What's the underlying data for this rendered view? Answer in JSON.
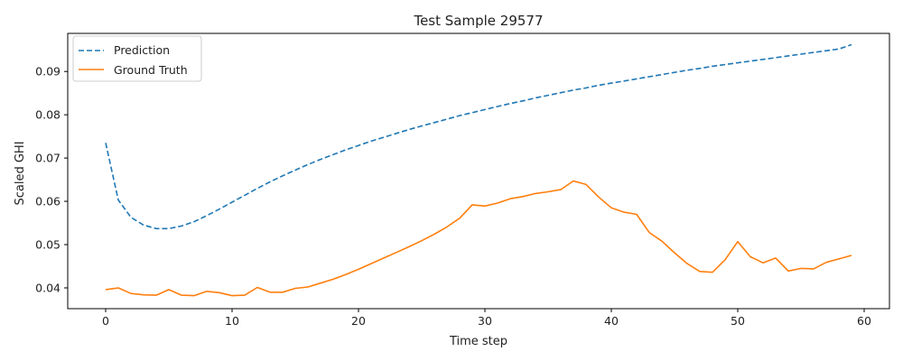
{
  "chart_data": {
    "type": "line",
    "title": "Test Sample 29577",
    "xlabel": "Time step",
    "ylabel": "Scaled GHI",
    "xlim": [
      -3,
      62
    ],
    "ylim": [
      0.0352,
      0.0988
    ],
    "xticks": [
      0,
      10,
      20,
      30,
      40,
      50,
      60
    ],
    "xtick_labels": [
      "0",
      "10",
      "20",
      "30",
      "40",
      "50",
      "60"
    ],
    "yticks": [
      0.04,
      0.05,
      0.06,
      0.07,
      0.08,
      0.09
    ],
    "ytick_labels": [
      "0.04",
      "0.05",
      "0.06",
      "0.07",
      "0.08",
      "0.09"
    ],
    "grid": false,
    "legend_position": "top-left",
    "series": [
      {
        "name": "Prediction",
        "color": "#1f77b4",
        "style": "dashed",
        "x": [
          0,
          1,
          2,
          3,
          4,
          5,
          6,
          7,
          8,
          9,
          10,
          11,
          12,
          13,
          14,
          15,
          16,
          17,
          18,
          19,
          20,
          21,
          22,
          23,
          24,
          25,
          26,
          27,
          28,
          29,
          30,
          31,
          32,
          33,
          34,
          35,
          36,
          37,
          38,
          39,
          40,
          41,
          42,
          43,
          44,
          45,
          46,
          47,
          48,
          49,
          50,
          51,
          52,
          53,
          54,
          55,
          56,
          57,
          58,
          59
        ],
        "values": [
          0.0735,
          0.0603,
          0.0563,
          0.0545,
          0.0537,
          0.0537,
          0.0543,
          0.0553,
          0.0567,
          0.0582,
          0.0598,
          0.0614,
          0.063,
          0.0645,
          0.0659,
          0.0672,
          0.0685,
          0.0697,
          0.0708,
          0.0719,
          0.0729,
          0.0739,
          0.0748,
          0.0757,
          0.0766,
          0.0774,
          0.0782,
          0.079,
          0.0798,
          0.0805,
          0.0812,
          0.0819,
          0.0826,
          0.0832,
          0.0839,
          0.0845,
          0.0851,
          0.0857,
          0.0862,
          0.0868,
          0.0873,
          0.0878,
          0.0883,
          0.0888,
          0.0893,
          0.0898,
          0.0903,
          0.0907,
          0.0912,
          0.0916,
          0.092,
          0.0924,
          0.0928,
          0.0932,
          0.0936,
          0.094,
          0.0944,
          0.0948,
          0.0952,
          0.0962
        ]
      },
      {
        "name": "Ground Truth",
        "color": "#ff7f0e",
        "style": "solid",
        "x": [
          0,
          1,
          2,
          3,
          4,
          5,
          6,
          7,
          8,
          9,
          10,
          11,
          12,
          13,
          14,
          15,
          16,
          17,
          18,
          19,
          20,
          21,
          22,
          23,
          24,
          25,
          26,
          27,
          28,
          29,
          30,
          31,
          32,
          33,
          34,
          35,
          36,
          37,
          38,
          39,
          40,
          41,
          42,
          43,
          44,
          45,
          46,
          47,
          48,
          49,
          50,
          51,
          52,
          53,
          54,
          55,
          56,
          57,
          58,
          59
        ],
        "values": [
          0.0396,
          0.04,
          0.0387,
          0.0384,
          0.0383,
          0.0396,
          0.0383,
          0.0382,
          0.0392,
          0.0389,
          0.0382,
          0.0383,
          0.0401,
          0.039,
          0.039,
          0.0399,
          0.0402,
          0.0411,
          0.042,
          0.0431,
          0.0443,
          0.0456,
          0.0469,
          0.0482,
          0.0495,
          0.0509,
          0.0524,
          0.0541,
          0.0561,
          0.0592,
          0.0589,
          0.0596,
          0.0606,
          0.0611,
          0.0618,
          0.0622,
          0.0627,
          0.0647,
          0.0639,
          0.061,
          0.0585,
          0.0575,
          0.057,
          0.0528,
          0.0508,
          0.0481,
          0.0456,
          0.0438,
          0.0436,
          0.0465,
          0.0507,
          0.0472,
          0.0458,
          0.0469,
          0.0439,
          0.0445,
          0.0444,
          0.0459,
          0.0467,
          0.0475
        ]
      }
    ]
  }
}
